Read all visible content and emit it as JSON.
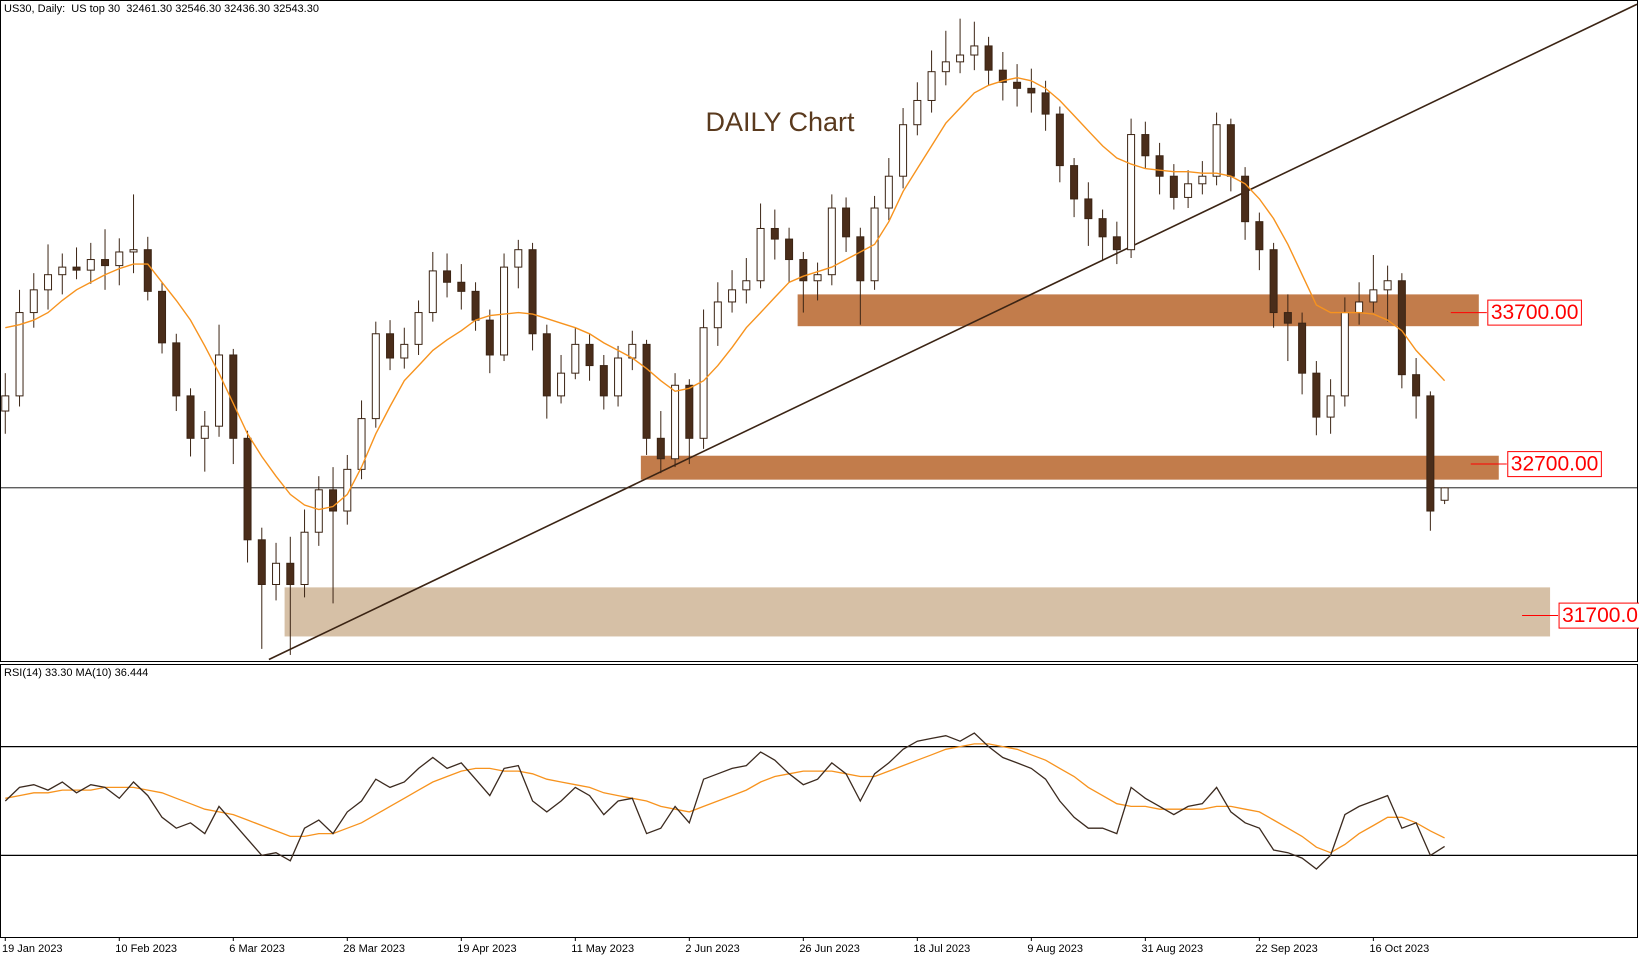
{
  "chart_data": [
    {
      "type": "candlestick",
      "subtitle": "US30, Daily:  US top 30  32461.30 32546.30 32436.30 32543.30",
      "title": "DAILY Chart",
      "xlim": [
        -0.3,
        114.5
      ],
      "ylim": [
        31400,
        35750
      ],
      "up_color": "#ffffff",
      "down_color": "#4a2d1a",
      "wick_color": "#3b2414",
      "open": [
        33050,
        33150,
        33700,
        33850,
        33950,
        34000,
        33980,
        34050,
        34010,
        34100,
        34115,
        33840,
        33500,
        33150,
        32870,
        32950,
        33420,
        32870,
        32200,
        31905,
        32045,
        31905,
        32250,
        32530,
        32390,
        32665,
        33000,
        33560,
        33400,
        33490,
        33700,
        33975,
        33900,
        33840,
        33650,
        33420,
        34000,
        34115,
        33560,
        33150,
        33300,
        33490,
        33350,
        33150,
        33400,
        33490,
        32870,
        32735,
        33220,
        32870,
        33600,
        33770,
        33850,
        33910,
        34255,
        34185,
        34050,
        33910,
        33950,
        34390,
        34200,
        33910,
        34390,
        34600,
        34940,
        35100,
        35290,
        35355,
        35400,
        35460,
        35300,
        35220,
        35180,
        35150,
        35010,
        34670,
        34450,
        34320,
        34200,
        34115,
        34875,
        34735,
        34600,
        34460,
        34550,
        34600,
        34940,
        34600,
        34300,
        34115,
        33700,
        33630,
        33300,
        33010,
        33150,
        33700,
        33770,
        33850,
        33910,
        33290,
        33150,
        32461
      ],
      "high": [
        33300,
        33850,
        33960,
        34150,
        34090,
        34130,
        34160,
        34250,
        34190,
        34480,
        34200,
        33900,
        33560,
        33200,
        33050,
        33620,
        33460,
        32920,
        32280,
        32180,
        32220,
        32400,
        32620,
        32680,
        32760,
        33120,
        33640,
        33650,
        33600,
        33780,
        34100,
        34090,
        34020,
        33900,
        33720,
        34090,
        34180,
        34160,
        33620,
        33420,
        33600,
        33560,
        33420,
        33480,
        33580,
        33520,
        33050,
        33300,
        33260,
        33720,
        33900,
        33980,
        34060,
        34420,
        34380,
        34260,
        34100,
        34030,
        34480,
        34460,
        34260,
        34470,
        34720,
        35050,
        35220,
        35430,
        35560,
        35640,
        35620,
        35520,
        35420,
        35340,
        35310,
        35230,
        35060,
        34720,
        34560,
        34380,
        34300,
        34980,
        34960,
        34820,
        34680,
        34640,
        34700,
        35020,
        34980,
        34660,
        34360,
        34160,
        33820,
        33700,
        33380,
        33260,
        33800,
        33900,
        34080,
        34010,
        33960,
        33400,
        33180,
        32546
      ],
      "low": [
        32900,
        33080,
        33600,
        33720,
        33820,
        33920,
        33890,
        33850,
        33880,
        33960,
        33780,
        33430,
        33050,
        32750,
        32650,
        32880,
        32700,
        32050,
        31480,
        31800,
        31440,
        31820,
        32160,
        31780,
        32300,
        32600,
        32940,
        33320,
        33330,
        33420,
        33640,
        33800,
        33720,
        33580,
        33300,
        33380,
        33860,
        33450,
        33000,
        33100,
        33260,
        33250,
        33060,
        33080,
        33320,
        32760,
        32640,
        32680,
        32700,
        32800,
        33480,
        33700,
        33760,
        33860,
        34050,
        33900,
        33700,
        33780,
        33880,
        34100,
        33620,
        33850,
        34310,
        34520,
        34870,
        35020,
        35200,
        35280,
        35300,
        35200,
        35100,
        35060,
        35020,
        34900,
        34560,
        34330,
        34140,
        34040,
        34020,
        34060,
        34650,
        34480,
        34380,
        34390,
        34480,
        34540,
        34500,
        34180,
        33980,
        33600,
        33380,
        33160,
        32890,
        32900,
        33080,
        33620,
        33700,
        33640,
        33200,
        33000,
        32260,
        32436
      ],
      "close": [
        33150,
        33700,
        33850,
        33950,
        34000,
        33980,
        34050,
        34010,
        34100,
        34115,
        33840,
        33500,
        33150,
        32870,
        32950,
        33420,
        32870,
        32200,
        31905,
        32045,
        31905,
        32250,
        32530,
        32390,
        32665,
        33000,
        33560,
        33400,
        33490,
        33700,
        33975,
        33900,
        33840,
        33650,
        33420,
        34000,
        34115,
        33560,
        33150,
        33300,
        33490,
        33350,
        33150,
        33400,
        33490,
        32870,
        32735,
        33220,
        32870,
        33600,
        33770,
        33850,
        33910,
        34255,
        34185,
        34050,
        33910,
        33950,
        34390,
        34200,
        33910,
        34390,
        34600,
        34940,
        35100,
        35290,
        35355,
        35400,
        35460,
        35300,
        35220,
        35180,
        35150,
        35010,
        34670,
        34450,
        34320,
        34200,
        34115,
        34875,
        34735,
        34600,
        34460,
        34550,
        34600,
        34940,
        34600,
        34300,
        34115,
        33700,
        33630,
        33300,
        33010,
        33150,
        33700,
        33770,
        33850,
        33910,
        33290,
        33150,
        32390,
        32543
      ],
      "ma": {
        "color": "#f7931e",
        "values": [
          33600,
          33620,
          33650,
          33700,
          33780,
          33850,
          33900,
          33950,
          33990,
          34020,
          34020,
          33900,
          33780,
          33650,
          33480,
          33300,
          33100,
          32900,
          32750,
          32620,
          32500,
          32430,
          32400,
          32420,
          32500,
          32680,
          32900,
          33080,
          33250,
          33350,
          33450,
          33520,
          33580,
          33650,
          33680,
          33690,
          33700,
          33690,
          33660,
          33630,
          33600,
          33560,
          33500,
          33450,
          33400,
          33330,
          33250,
          33180,
          33200,
          33250,
          33350,
          33470,
          33600,
          33700,
          33800,
          33900,
          33940,
          33970,
          34000,
          34050,
          34100,
          34150,
          34300,
          34500,
          34650,
          34800,
          34950,
          35050,
          35150,
          35200,
          35230,
          35250,
          35230,
          35180,
          35100,
          35000,
          34900,
          34800,
          34720,
          34680,
          34650,
          34640,
          34630,
          34630,
          34620,
          34620,
          34600,
          34550,
          34450,
          34320,
          34150,
          33950,
          33750,
          33700,
          33700,
          33700,
          33690,
          33650,
          33580,
          33450,
          33350,
          33250
        ]
      },
      "zones": [
        {
          "level": 33700,
          "label": "33700.00",
          "top": 33820,
          "bottom": 33610,
          "start": 55.6,
          "end": 103.4,
          "color": "#c27c4b"
        },
        {
          "level": 32700,
          "label": "32700.00",
          "top": 32755,
          "bottom": 32597,
          "start": 44.6,
          "end": 104.8,
          "color": "#c27c4b"
        },
        {
          "level": 31700,
          "label": "31700.0",
          "top": 31886,
          "bottom": 31562,
          "start": 19.6,
          "end": 108.4,
          "color": "#d6c0a6"
        }
      ],
      "label_color": "#ff0000",
      "trendline": {
        "x": [
          18.5,
          114.5
        ],
        "y": [
          31410,
          35735
        ],
        "color": "#3b2414"
      },
      "price_line": 32543.3
    },
    {
      "type": "line",
      "title": "RSI(14) 33.30 MA(10) 36.444",
      "xlim": [
        -0.3,
        114.5
      ],
      "ylim": [
        0,
        100
      ],
      "levels": [
        30,
        70
      ],
      "xticks": [
        {
          "value": 0,
          "label": "19 Jan 2023"
        },
        {
          "value": 8,
          "label": "10 Feb 2023"
        },
        {
          "value": 16,
          "label": "6 Mar 2023"
        },
        {
          "value": 24,
          "label": "28 Mar 2023"
        },
        {
          "value": 32,
          "label": "19 Apr 2023"
        },
        {
          "value": 40,
          "label": "11 May 2023"
        },
        {
          "value": 48,
          "label": "2 Jun 2023"
        },
        {
          "value": 56,
          "label": "26 Jun 2023"
        },
        {
          "value": 64,
          "label": "18 Jul 2023"
        },
        {
          "value": 72,
          "label": "9 Aug 2023"
        },
        {
          "value": 80,
          "label": "31 Aug 2023"
        },
        {
          "value": 88,
          "label": "22 Sep 2023"
        },
        {
          "value": 96,
          "label": "16 Oct 2023"
        }
      ],
      "series": [
        {
          "color": "#3b2a1f",
          "values": [
            50,
            55,
            56,
            54,
            57,
            53,
            56,
            55,
            51,
            57,
            52,
            44,
            40,
            42,
            38,
            48,
            42,
            36,
            30,
            31,
            28,
            40,
            43,
            38,
            46,
            50,
            58,
            55,
            57,
            62,
            66,
            62,
            64,
            58,
            52,
            62,
            63,
            50,
            46,
            50,
            55,
            52,
            45,
            50,
            51,
            38,
            40,
            48,
            42,
            58,
            60,
            62,
            63,
            68,
            65,
            60,
            56,
            58,
            64,
            60,
            50,
            60,
            64,
            69,
            72,
            73,
            74,
            72,
            75,
            70,
            66,
            64,
            62,
            58,
            50,
            44,
            40,
            40,
            38,
            55,
            51,
            48,
            45,
            48,
            49,
            55,
            46,
            42,
            40,
            32,
            31,
            29,
            25,
            30,
            45,
            48,
            50,
            52,
            40,
            42,
            30,
            33.3
          ]
        },
        {
          "color": "#f7931e",
          "values": [
            51,
            52,
            53,
            53,
            54,
            54,
            54,
            55,
            55,
            55,
            54,
            53,
            51,
            49,
            47,
            46,
            45,
            43,
            41,
            39,
            37,
            37,
            38,
            38,
            40,
            42,
            45,
            48,
            51,
            54,
            57,
            59,
            61,
            62,
            62,
            61,
            61,
            60,
            58,
            57,
            56,
            55,
            53,
            52,
            51,
            50,
            48,
            47,
            46,
            48,
            50,
            52,
            54,
            57,
            59,
            60,
            61,
            61,
            61,
            60,
            59,
            59,
            61,
            63,
            65,
            67,
            69,
            70,
            71,
            71,
            70,
            69,
            67,
            65,
            62,
            59,
            55,
            52,
            49,
            48,
            48,
            47,
            47,
            47,
            47,
            48,
            48,
            47,
            46,
            43,
            40,
            37,
            33,
            31,
            34,
            38,
            41,
            44,
            44,
            42,
            39,
            36.444
          ]
        }
      ]
    }
  ]
}
